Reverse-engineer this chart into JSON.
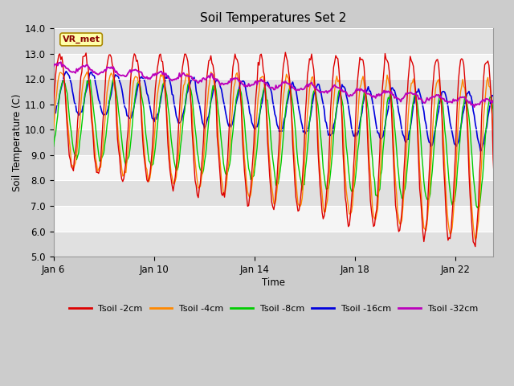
{
  "title": "Soil Temperatures Set 2",
  "xlabel": "Time",
  "ylabel": "Soil Temperature (C)",
  "ylim": [
    5.0,
    14.0
  ],
  "yticks": [
    5.0,
    6.0,
    7.0,
    8.0,
    9.0,
    10.0,
    11.0,
    12.0,
    13.0,
    14.0
  ],
  "xtick_labels": [
    "Jan 6",
    "Jan 10",
    "Jan 14",
    "Jan 18",
    "Jan 22"
  ],
  "xtick_positions": [
    0,
    4,
    8,
    12,
    16
  ],
  "xlim": [
    0,
    17.5
  ],
  "colors": {
    "Tsoil -2cm": "#dd0000",
    "Tsoil -4cm": "#ff8800",
    "Tsoil -8cm": "#00cc00",
    "Tsoil -16cm": "#0000dd",
    "Tsoil -32cm": "#bb00bb"
  },
  "fig_bg": "#cccccc",
  "plot_bg": "#f5f5f5",
  "band_color": "#e0e0e0",
  "annotation_text": "VR_met",
  "annotation_fg": "#880000",
  "annotation_bg": "#ffffaa",
  "annotation_border": "#aa8800",
  "n_points": 432
}
